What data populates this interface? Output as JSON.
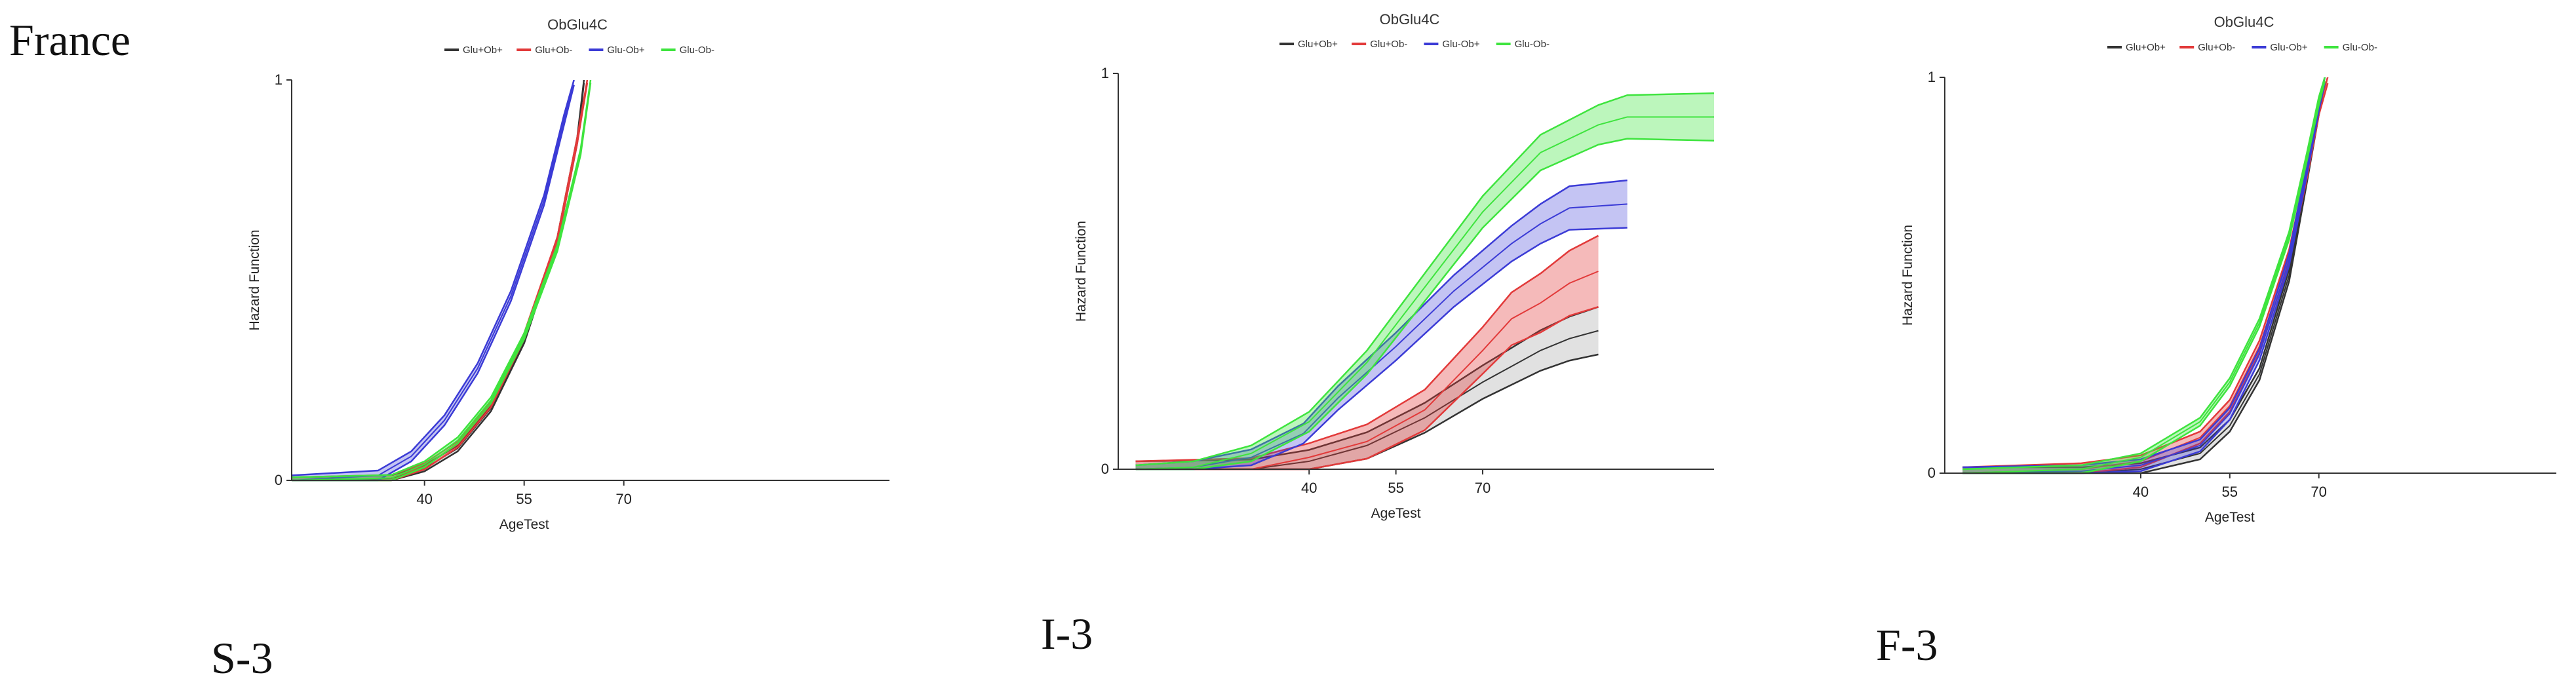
{
  "country": "France",
  "captions": {
    "S": "S-3",
    "I": "I-3",
    "F": "F-3"
  },
  "series_colors": {
    "Glu+Ob+": "#333333",
    "Glu+Ob-": "#e23a3a",
    "Glu-Ob+": "#3b3bd6",
    "Glu-Ob-": "#3ee43e"
  },
  "chart_data": [
    {
      "id": "S-3",
      "type": "line",
      "title": "ObGlu4C",
      "xlabel": "AgeTest",
      "ylabel": "Hazard Function",
      "xlim": [
        20,
        110
      ],
      "ylim": [
        0,
        1
      ],
      "xticks": [
        40,
        55,
        70
      ],
      "yticks": [
        0,
        1
      ],
      "legend": [
        "Glu+Ob+",
        "Glu+Ob-",
        "Glu-Ob+",
        "Glu-Ob-"
      ],
      "series": [
        {
          "name": "Glu+Ob+",
          "x": [
            20,
            35,
            40,
            45,
            50,
            55,
            60,
            63,
            64
          ],
          "y": [
            0,
            0.005,
            0.03,
            0.08,
            0.18,
            0.35,
            0.6,
            0.85,
            1.0
          ],
          "band": 0.015
        },
        {
          "name": "Glu+Ob-",
          "x": [
            20,
            35,
            40,
            45,
            50,
            55,
            60,
            63,
            64.5
          ],
          "y": [
            0,
            0.006,
            0.035,
            0.09,
            0.19,
            0.36,
            0.6,
            0.85,
            1.0
          ],
          "band": 0.015
        },
        {
          "name": "Glu-Ob+",
          "x": [
            20,
            33,
            38,
            43,
            48,
            53,
            58,
            61,
            62.5
          ],
          "y": [
            0,
            0.012,
            0.06,
            0.15,
            0.28,
            0.46,
            0.7,
            0.9,
            1.0
          ],
          "band": 0.025
        },
        {
          "name": "Glu-Ob-",
          "x": [
            20,
            35,
            40,
            45,
            50,
            55,
            60,
            63.5,
            65
          ],
          "y": [
            0,
            0.006,
            0.04,
            0.1,
            0.2,
            0.36,
            0.58,
            0.82,
            1.0
          ],
          "band": 0.015
        }
      ]
    },
    {
      "id": "I-3",
      "type": "line",
      "title": "ObGlu4C",
      "xlabel": "AgeTest",
      "ylabel": "Hazard Function",
      "xlim": [
        7,
        110
      ],
      "ylim": [
        0,
        1
      ],
      "xticks": [
        40,
        55,
        70
      ],
      "yticks": [
        0,
        1
      ],
      "legend": [
        "Glu+Ob+",
        "Glu+Ob-",
        "Glu-Ob+",
        "Glu-Ob-"
      ],
      "series": [
        {
          "name": "Glu+Ob+",
          "x": [
            10,
            30,
            40,
            50,
            60,
            70,
            75,
            80,
            85,
            90
          ],
          "y": [
            0,
            0.0,
            0.02,
            0.06,
            0.13,
            0.22,
            0.26,
            0.3,
            0.33,
            0.35
          ],
          "band": 0.04,
          "band_end": 0.12
        },
        {
          "name": "Glu+Ob-",
          "x": [
            10,
            30,
            40,
            50,
            60,
            70,
            75,
            80,
            85,
            90
          ],
          "y": [
            0,
            0.0,
            0.03,
            0.07,
            0.15,
            0.3,
            0.38,
            0.42,
            0.47,
            0.5
          ],
          "band": 0.04,
          "band_end": 0.18
        },
        {
          "name": "Glu-Ob+",
          "x": [
            10,
            20,
            30,
            39,
            45,
            55,
            65,
            75,
            80,
            85,
            95
          ],
          "y": [
            0,
            0.005,
            0.03,
            0.09,
            0.18,
            0.31,
            0.45,
            0.57,
            0.62,
            0.66,
            0.67
          ],
          "band": 0.02,
          "band_end": 0.12
        },
        {
          "name": "Glu-Ob-",
          "x": [
            10,
            20,
            30,
            40,
            50,
            60,
            70,
            80,
            90,
            95,
            110
          ],
          "y": [
            0,
            0.005,
            0.04,
            0.12,
            0.27,
            0.46,
            0.65,
            0.8,
            0.87,
            0.89,
            0.89
          ],
          "band": 0.02,
          "band_end": 0.12
        }
      ]
    },
    {
      "id": "F-3",
      "type": "line",
      "title": "ObGlu4C",
      "xlabel": "AgeTest",
      "ylabel": "Hazard Function",
      "xlim": [
        7,
        110
      ],
      "ylim": [
        0,
        1
      ],
      "xticks": [
        40,
        55,
        70
      ],
      "yticks": [
        0,
        1
      ],
      "legend": [
        "Glu+Ob+",
        "Glu+Ob-",
        "Glu-Ob+",
        "Glu-Ob-"
      ],
      "series": [
        {
          "name": "Glu+Ob+",
          "x": [
            10,
            30,
            40,
            50,
            55,
            60,
            65,
            68,
            70,
            71
          ],
          "y": [
            0,
            0.0,
            0.01,
            0.05,
            0.12,
            0.25,
            0.5,
            0.75,
            0.92,
            1.0
          ],
          "band": 0.03
        },
        {
          "name": "Glu+Ob-",
          "x": [
            10,
            30,
            40,
            50,
            55,
            60,
            65,
            68,
            70,
            71.5
          ],
          "y": [
            0,
            0.01,
            0.03,
            0.09,
            0.17,
            0.32,
            0.55,
            0.76,
            0.92,
            1.0
          ],
          "band": 0.03
        },
        {
          "name": "Glu-Ob+",
          "x": [
            10,
            30,
            40,
            50,
            55,
            60,
            65,
            68,
            70,
            71
          ],
          "y": [
            0,
            0.005,
            0.02,
            0.07,
            0.15,
            0.3,
            0.54,
            0.77,
            0.93,
            1.0
          ],
          "band": 0.03
        },
        {
          "name": "Glu-Ob-",
          "x": [
            10,
            30,
            40,
            50,
            55,
            60,
            65,
            68,
            70,
            71
          ],
          "y": [
            0,
            0.01,
            0.04,
            0.13,
            0.23,
            0.38,
            0.6,
            0.8,
            0.94,
            1.0
          ],
          "band": 0.02
        }
      ]
    }
  ]
}
